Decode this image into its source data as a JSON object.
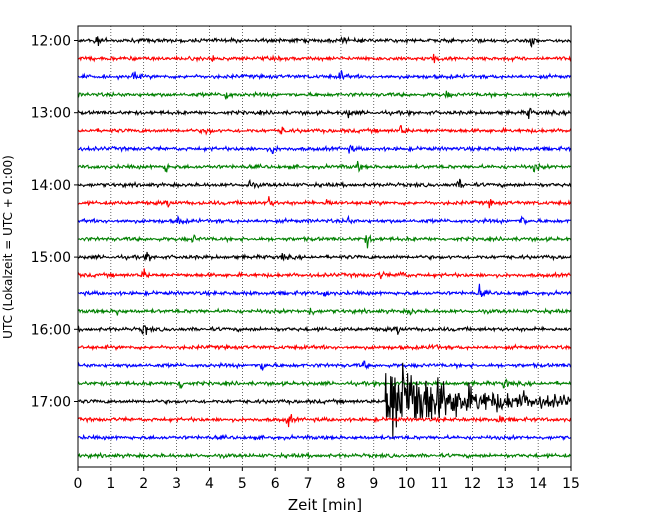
{
  "chart_data": {
    "type": "line",
    "subtype": "helicorder",
    "xlabel": "Zeit  [min]",
    "ylabel": "UTC (Lokalzeit = UTC + 01:00)",
    "xlim": [
      0,
      15
    ],
    "x_ticks": [
      0,
      1,
      2,
      3,
      4,
      5,
      6,
      7,
      8,
      9,
      10,
      11,
      12,
      13,
      14,
      15
    ],
    "y_tick_labels": [
      "12:00",
      "13:00",
      "14:00",
      "15:00",
      "16:00",
      "17:00"
    ],
    "row_interval_minutes": 15,
    "grid": "vertical-dotted",
    "trace_colors": [
      "#000000",
      "#ff0000",
      "#0000ff",
      "#008000"
    ],
    "series": [
      {
        "start": "12:00",
        "events": [
          [
            0.55,
            1.0
          ],
          [
            8.0,
            0.7
          ],
          [
            13.8,
            1.0
          ]
        ]
      },
      {
        "start": "12:15",
        "events": [
          [
            4.1,
            0.8
          ],
          [
            10.8,
            1.1
          ]
        ]
      },
      {
        "start": "12:30",
        "events": [
          [
            1.7,
            0.6
          ],
          [
            8.0,
            0.8
          ]
        ]
      },
      {
        "start": "12:45",
        "events": [
          [
            4.5,
            1.0
          ],
          [
            11.2,
            0.5
          ]
        ]
      },
      {
        "start": "13:00",
        "events": [
          [
            8.2,
            0.8
          ],
          [
            13.7,
            0.9
          ]
        ]
      },
      {
        "start": "13:15",
        "events": [
          [
            3.9,
            0.5
          ],
          [
            6.2,
            0.6
          ],
          [
            9.8,
            1.0
          ],
          [
            15.0,
            0.8
          ]
        ]
      },
      {
        "start": "13:30",
        "events": [
          [
            5.9,
            0.8
          ],
          [
            8.3,
            0.6
          ]
        ]
      },
      {
        "start": "13:45",
        "events": [
          [
            2.65,
            0.9
          ],
          [
            8.5,
            0.7
          ],
          [
            13.9,
            0.8
          ]
        ]
      },
      {
        "start": "14:00",
        "events": [
          [
            5.2,
            0.7
          ],
          [
            11.6,
            0.9
          ]
        ]
      },
      {
        "start": "14:15",
        "events": [
          [
            2.7,
            0.6
          ],
          [
            5.8,
            0.9
          ],
          [
            7.6,
            1.0
          ],
          [
            12.5,
            0.5
          ]
        ]
      },
      {
        "start": "14:30",
        "events": [
          [
            3.05,
            1.0
          ],
          [
            8.2,
            0.6
          ],
          [
            13.5,
            0.9
          ]
        ]
      },
      {
        "start": "14:45",
        "events": [
          [
            3.5,
            0.6
          ],
          [
            8.8,
            0.9
          ]
        ]
      },
      {
        "start": "15:00",
        "events": [
          [
            2.1,
            0.8
          ],
          [
            6.2,
            0.5
          ]
        ]
      },
      {
        "start": "15:15",
        "events": [
          [
            2.0,
            0.8
          ],
          [
            9.2,
            0.7
          ],
          [
            9.8,
            0.9
          ]
        ]
      },
      {
        "start": "15:30",
        "events": [
          [
            7.5,
            0.6
          ],
          [
            12.2,
            1.0
          ]
        ]
      },
      {
        "start": "15:45",
        "events": [
          [
            1.2,
            0.5
          ],
          [
            7.05,
            0.9
          ],
          [
            10.1,
            0.6
          ]
        ]
      },
      {
        "start": "16:00",
        "events": [
          [
            2.0,
            1.1
          ],
          [
            9.7,
            0.7
          ]
        ]
      },
      {
        "start": "16:15",
        "events": [
          [
            10.8,
            0.8
          ]
        ]
      },
      {
        "start": "16:30",
        "events": [
          [
            5.6,
            1.0
          ],
          [
            8.7,
            0.5
          ]
        ]
      },
      {
        "start": "16:45",
        "events": [
          [
            3.1,
            1.0
          ],
          [
            13.0,
            0.9
          ]
        ]
      },
      {
        "start": "17:00",
        "events": [
          [
            13.5,
            0.7
          ]
        ],
        "earthquake": {
          "onset_min": 9.35,
          "peak_min": 9.6,
          "coda_end_min": 15.0
        }
      },
      {
        "start": "17:15",
        "events": [
          [
            6.4,
            1.1
          ],
          [
            12.8,
            1.0
          ]
        ]
      },
      {
        "start": "17:30",
        "events": []
      },
      {
        "start": "17:45",
        "events": []
      }
    ]
  }
}
